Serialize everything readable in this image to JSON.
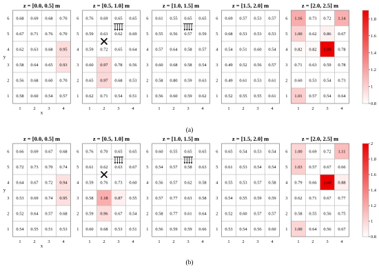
{
  "chart_data": {
    "type": "heatmap",
    "panel_titles": [
      "z = [0.0, 0.5] m",
      "z = [0.5, 1.0] m",
      "z = [1.0, 1.5] m",
      "z = [1.5, 2.0] m",
      "z = [2.0, 2.5] m"
    ],
    "x_ticks": [
      "1",
      "2",
      "3",
      "4"
    ],
    "y_ticks": [
      "6",
      "5",
      "4",
      "3",
      "2",
      "1"
    ],
    "xlabel": "x",
    "ylabel": "y",
    "colormap": {
      "low": "#ffffff",
      "high": "#ee0000"
    },
    "subfigures": [
      {
        "caption": "(a)",
        "vmin": 0.8,
        "vmax": 1.9,
        "colorbar_ticks": [
          "0.8",
          "1",
          "1.2",
          "1.4",
          "1.6",
          "1.8"
        ],
        "panels": [
          {
            "z": "z = [0.0, 0.5] m",
            "rows": [
              [
                "0.68",
                "0.69",
                "0.68",
                "0.70"
              ],
              [
                "0.67",
                "0.71",
                "0.76",
                "0.70"
              ],
              [
                "0.62",
                "0.63",
                "0.68",
                "0.95"
              ],
              [
                "0.58",
                "0.64",
                "0.65",
                "0.93"
              ],
              [
                "0.56",
                "0.68",
                "0.60",
                "0.70"
              ],
              [
                "0.58",
                "0.60",
                "0.54",
                "0.57"
              ]
            ]
          },
          {
            "z": "z = [0.5, 1.0] m",
            "rows": [
              [
                "0.76",
                "0.69",
                "0.65",
                "0.65"
              ],
              [
                "0.59",
                "0.63",
                "0.62",
                "0.69"
              ],
              [
                "0.59",
                "0.72",
                "0.65",
                "0.64"
              ],
              [
                "0.60",
                "0.97",
                "0.78",
                "0.56"
              ],
              [
                "0.65",
                "0.97",
                "0.68",
                "0.53"
              ],
              [
                "0.62",
                "0.71",
                "0.54",
                "0.51"
              ]
            ]
          },
          {
            "z": "z = [1.0, 1.5] m",
            "rows": [
              [
                "0.61",
                "0.55",
                "0.65",
                "0.65"
              ],
              [
                "0.55",
                "0.56",
                "0.57",
                "0.59"
              ],
              [
                "0.57",
                "0.64",
                "0.58",
                "0.57"
              ],
              [
                "0.60",
                "0.68",
                "0.58",
                "0.54"
              ],
              [
                "0.58",
                "0.80",
                "0.59",
                "0.63"
              ],
              [
                "0.56",
                "0.60",
                "0.59",
                "0.62"
              ]
            ]
          },
          {
            "z": "z = [1.5, 2.0] m",
            "rows": [
              [
                "0.69",
                "0.57",
                "0.53",
                "0.57"
              ],
              [
                "0.68",
                "0.53",
                "0.53",
                "0.53"
              ],
              [
                "0.54",
                "0.51",
                "0.60",
                "0.54"
              ],
              [
                "0.49",
                "0.52",
                "0.56",
                "0.57"
              ],
              [
                "0.49",
                "0.61",
                "0.53",
                "0.61"
              ],
              [
                "0.52",
                "0.55",
                "0.55",
                "0.61"
              ]
            ]
          },
          {
            "z": "z = [2.0, 2.5] m",
            "rows": [
              [
                "1.16",
                "0.73",
                "0.72",
                "1.14"
              ],
              [
                "1.00",
                "0.62",
                "0.86",
                "0.67"
              ],
              [
                "0.82",
                "0.82",
                "1.99",
                "0.78"
              ],
              [
                "0.71",
                "0.63",
                "0.59",
                "0.78"
              ],
              [
                "0.60",
                "0.53",
                "0.54",
                "0.73"
              ],
              [
                "1.01",
                "0.57",
                "0.54",
                "0.64"
              ]
            ]
          }
        ]
      },
      {
        "caption": "(b)",
        "vmin": 0.8,
        "vmax": 2.0,
        "colorbar_ticks": [
          "0.8",
          "1",
          "1.2",
          "1.4",
          "1.6",
          "1.8",
          "2"
        ],
        "panels": [
          {
            "z": "z = [0.0, 0.5] m",
            "rows": [
              [
                "0.66",
                "0.69",
                "0.67",
                "0.68"
              ],
              [
                "0.72",
                "0.73",
                "0.70",
                "0.74"
              ],
              [
                "0.64",
                "0.67",
                "0.72",
                "0.94"
              ],
              [
                "0.53",
                "0.69",
                "0.74",
                "0.95"
              ],
              [
                "0.52",
                "0.64",
                "0.57",
                "0.68"
              ],
              [
                "0.54",
                "0.55",
                "0.51",
                "0.53"
              ]
            ]
          },
          {
            "z": "z = [0.5, 1.0] m",
            "rows": [
              [
                "0.76",
                "0.70",
                "0.65",
                "0.65"
              ],
              [
                "0.61",
                "0.62",
                "0.63",
                "0.67"
              ],
              [
                "0.59",
                "0.76",
                "0.73",
                "0.60"
              ],
              [
                "0.58",
                "1.18",
                "0.87",
                "0.55"
              ],
              [
                "0.59",
                "0.96",
                "0.67",
                "0.54"
              ],
              [
                "0.60",
                "0.68",
                "0.53",
                "0.51"
              ]
            ]
          },
          {
            "z": "z = [1.0, 1.5] m",
            "rows": [
              [
                "0.60",
                "0.55",
                "0.65",
                "0.65"
              ],
              [
                "0.54",
                "0.57",
                "0.58",
                "0.63"
              ],
              [
                "0.56",
                "0.57",
                "0.62",
                "0.58"
              ],
              [
                "0.57",
                "0.77",
                "0.63",
                "0.58"
              ],
              [
                "0.58",
                "0.77",
                "0.61",
                "0.64"
              ],
              [
                "0.56",
                "0.59",
                "0.59",
                "0.66"
              ]
            ]
          },
          {
            "z": "z = [1.5, 2.0] m",
            "rows": [
              [
                "0.65",
                "0.54",
                "0.53",
                "0.54"
              ],
              [
                "0.61",
                "0.53",
                "0.54",
                "0.54"
              ],
              [
                "0.55",
                "0.53",
                "0.57",
                "0.58"
              ],
              [
                "0.54",
                "0.55",
                "0.59",
                "0.59"
              ],
              [
                "0.52",
                "0.60",
                "0.57",
                "0.57"
              ],
              [
                "0.53",
                "0.54",
                "0.56",
                "0.60"
              ]
            ]
          },
          {
            "z": "z = [2.0, 2.5] m",
            "rows": [
              [
                "1.00",
                "0.69",
                "0.72",
                "1.11"
              ],
              [
                "1.03",
                "0.57",
                "0.67",
                "0.66"
              ],
              [
                "0.79",
                "0.66",
                "2.00",
                "0.88"
              ],
              [
                "0.62",
                "0.71",
                "0.67",
                "0.77"
              ],
              [
                "0.58",
                "0.55",
                "0.56",
                "0.75"
              ],
              [
                "1.00",
                "0.64",
                "0.56",
                "0.67"
              ]
            ]
          }
        ]
      }
    ],
    "annotations": [
      {
        "kind": "cross",
        "panel": 2,
        "x": 2,
        "y": 4
      },
      {
        "kind": "downward-arrows",
        "panel": 2,
        "x": 3,
        "y": 6
      },
      {
        "kind": "downward-arrows",
        "panel": 3,
        "x": 3,
        "y": 6
      }
    ]
  }
}
